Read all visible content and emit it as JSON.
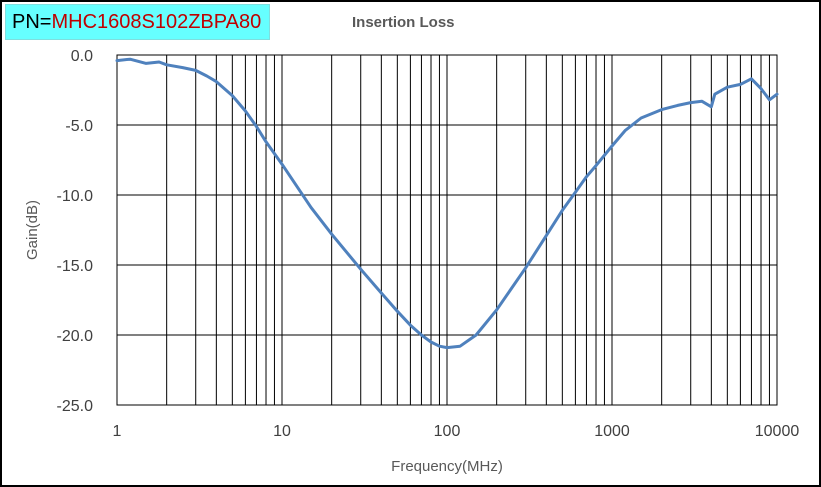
{
  "header": {
    "pn_prefix": "PN=",
    "pn_value": "MHC1608S102ZBPA80"
  },
  "chart_data": {
    "type": "line",
    "title": "Insertion Loss",
    "xlabel": "Frequency(MHz)",
    "ylabel": "Gain(dB)",
    "xscale": "log",
    "xlim": [
      1,
      10000
    ],
    "ylim": [
      -25,
      0
    ],
    "x_ticks": [
      1,
      10,
      100,
      1000,
      10000
    ],
    "x_tick_labels": [
      "1",
      "10",
      "100",
      "1000",
      "10000"
    ],
    "y_ticks": [
      0,
      -5,
      -10,
      -15,
      -20,
      -25
    ],
    "y_tick_labels": [
      "0.0",
      "-5.0",
      "-10.0",
      "-15.0",
      "-20.0",
      "-25.0"
    ],
    "grid": true,
    "line_color": "#4f81bd",
    "series": [
      {
        "x": [
          1,
          1.2,
          1.5,
          1.8,
          2,
          2.5,
          3,
          3.5,
          4,
          5,
          6,
          7,
          8,
          10,
          15,
          20,
          30,
          40,
          50,
          60,
          70,
          80,
          90,
          100,
          120,
          150,
          200,
          300,
          400,
          500,
          600,
          700,
          800,
          1000,
          1200,
          1500,
          2000,
          2500,
          3000,
          3500,
          4000,
          4200,
          5000,
          6000,
          7000,
          8000,
          9000,
          10000
        ],
        "y": [
          -0.4,
          -0.3,
          -0.6,
          -0.5,
          -0.7,
          -0.9,
          -1.1,
          -1.5,
          -1.9,
          -2.9,
          -4.0,
          -5.1,
          -6.2,
          -7.8,
          -10.9,
          -12.8,
          -15.3,
          -17.0,
          -18.3,
          -19.3,
          -20.0,
          -20.5,
          -20.8,
          -20.9,
          -20.8,
          -20.0,
          -18.2,
          -15.2,
          -12.9,
          -11.1,
          -9.8,
          -8.7,
          -7.9,
          -6.5,
          -5.4,
          -4.5,
          -3.9,
          -3.6,
          -3.4,
          -3.3,
          -3.7,
          -2.8,
          -2.3,
          -2.1,
          -1.7,
          -2.4,
          -3.2,
          -2.8
        ]
      }
    ]
  }
}
